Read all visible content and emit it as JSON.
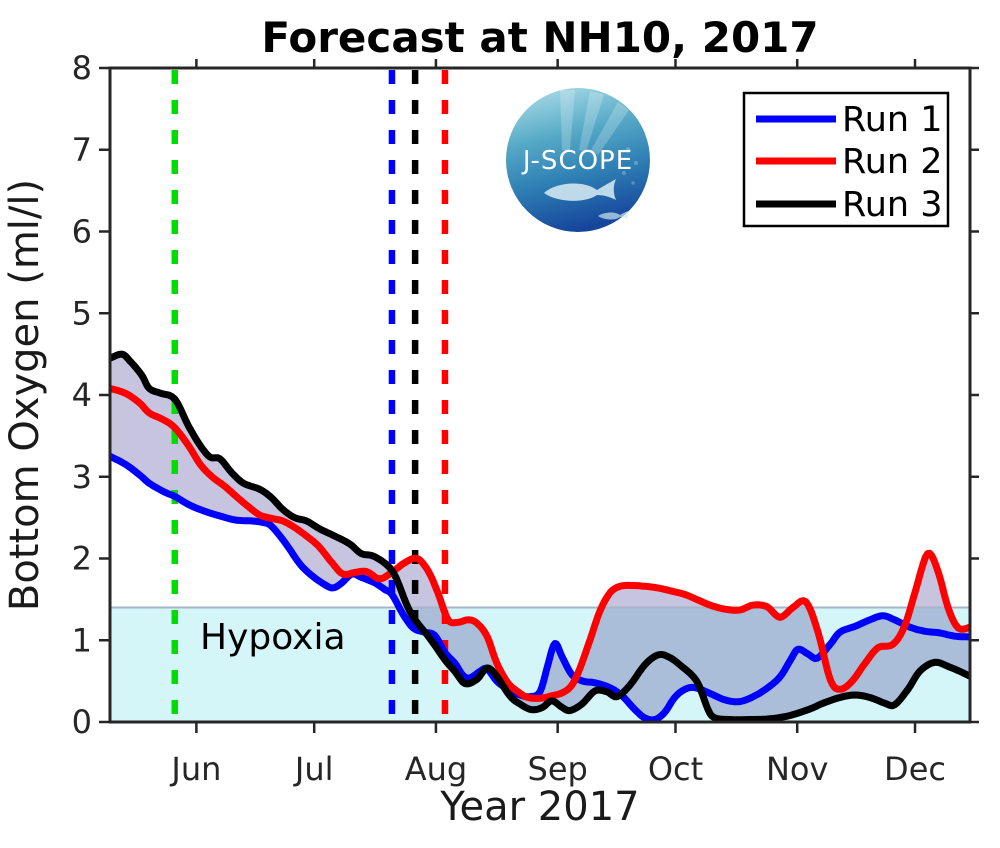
{
  "logo": {
    "text": "J-SCOPE"
  },
  "hypoxia": {
    "label": "Hypoxia",
    "threshold": 1.4,
    "band_color": "#d5f6f8",
    "edge_color": "#a8b4c8"
  },
  "legend": {
    "position": "top-right",
    "entries": [
      "Run 1",
      "Run 2",
      "Run 3"
    ]
  },
  "colors": {
    "axis": "#262626",
    "band_fill": "rgba(92,86,160,0.35)",
    "vline_green": "#00dc00"
  },
  "chart_data": {
    "type": "line",
    "title": "Forecast at NH10, 2017",
    "xlabel": "Year 2017",
    "ylabel": "Bottom Oxygen (ml/l)",
    "x_units": "day of year 2017",
    "x_range": [
      130,
      349
    ],
    "y_range": [
      0,
      8
    ],
    "grid": false,
    "legend_position": "top-right",
    "hypoxia_label": "Hypoxia",
    "hypoxia_threshold": 1.4,
    "y_ticks": [
      0,
      1,
      2,
      3,
      4,
      5,
      6,
      7,
      8
    ],
    "x_ticks": [
      {
        "day": 152,
        "label": "Jun"
      },
      {
        "day": 182,
        "label": "Jul"
      },
      {
        "day": 213,
        "label": "Aug"
      },
      {
        "day": 244,
        "label": "Sep"
      },
      {
        "day": 274,
        "label": "Oct"
      },
      {
        "day": 305,
        "label": "Nov"
      },
      {
        "day": 335,
        "label": "Dec"
      }
    ],
    "vlines": [
      {
        "name": "vline-green-dashed",
        "day": 146.5,
        "color": "#00dc00"
      },
      {
        "name": "vline-blue-dashed",
        "day": 201.8,
        "color": "#0000ff"
      },
      {
        "name": "vline-black-dashed",
        "day": 207.7,
        "color": "#000000"
      },
      {
        "name": "vline-red-dashed",
        "day": 215.3,
        "color": "#ff0000"
      }
    ],
    "band": {
      "between": "pointwise min and max of the three runs",
      "color": "rgba(92,86,160,0.35)"
    },
    "series": [
      {
        "name": "Run 1",
        "color": "#0000ff",
        "points": [
          [
            130,
            3.25
          ],
          [
            134,
            3.15
          ],
          [
            137.6,
            3.02
          ],
          [
            140,
            2.92
          ],
          [
            144,
            2.81
          ],
          [
            146.5,
            2.76
          ],
          [
            150,
            2.66
          ],
          [
            154,
            2.58
          ],
          [
            158,
            2.52
          ],
          [
            162,
            2.47
          ],
          [
            166,
            2.46
          ],
          [
            169,
            2.44
          ],
          [
            171,
            2.4
          ],
          [
            174.5,
            2.2
          ],
          [
            178.4,
            1.93
          ],
          [
            181.7,
            1.78
          ],
          [
            184.7,
            1.68
          ],
          [
            186.8,
            1.64
          ],
          [
            189,
            1.7
          ],
          [
            191.6,
            1.81
          ],
          [
            194,
            1.77
          ],
          [
            197.5,
            1.7
          ],
          [
            200,
            1.62
          ],
          [
            201.8,
            1.56
          ],
          [
            204.6,
            1.32
          ],
          [
            207.2,
            1.15
          ],
          [
            210,
            1.1
          ],
          [
            212.7,
            1.06
          ],
          [
            215.3,
            0.85
          ],
          [
            217.8,
            0.72
          ],
          [
            219.9,
            0.57
          ],
          [
            221.7,
            0.54
          ],
          [
            224.2,
            0.62
          ],
          [
            226,
            0.65
          ],
          [
            228.5,
            0.5
          ],
          [
            231.3,
            0.4
          ],
          [
            234.4,
            0.33
          ],
          [
            236.9,
            0.31
          ],
          [
            239.5,
            0.37
          ],
          [
            241.5,
            0.7
          ],
          [
            243.3,
            0.96
          ],
          [
            245.1,
            0.8
          ],
          [
            247.6,
            0.58
          ],
          [
            250.4,
            0.5
          ],
          [
            253.5,
            0.48
          ],
          [
            257.3,
            0.42
          ],
          [
            260.4,
            0.32
          ],
          [
            263.7,
            0.15
          ],
          [
            266.2,
            0.05
          ],
          [
            268.8,
            0.03
          ],
          [
            271.3,
            0.12
          ],
          [
            273.8,
            0.3
          ],
          [
            276.4,
            0.4
          ],
          [
            279,
            0.42
          ],
          [
            282.8,
            0.35
          ],
          [
            286.6,
            0.27
          ],
          [
            290.4,
            0.25
          ],
          [
            294.2,
            0.32
          ],
          [
            297.5,
            0.42
          ],
          [
            300.6,
            0.55
          ],
          [
            303.2,
            0.75
          ],
          [
            305.2,
            0.89
          ],
          [
            307.8,
            0.83
          ],
          [
            310.1,
            0.78
          ],
          [
            313.4,
            0.95
          ],
          [
            315.9,
            1.1
          ],
          [
            319.7,
            1.17
          ],
          [
            323.5,
            1.25
          ],
          [
            326.8,
            1.3
          ],
          [
            329.8,
            1.25
          ],
          [
            333.7,
            1.16
          ],
          [
            337.5,
            1.11
          ],
          [
            341.3,
            1.09
          ],
          [
            345.1,
            1.05
          ],
          [
            349,
            1.04
          ]
        ]
      },
      {
        "name": "Run 2",
        "color": "#ff0000",
        "points": [
          [
            130,
            4.08
          ],
          [
            134,
            4.02
          ],
          [
            137.6,
            3.9
          ],
          [
            140,
            3.78
          ],
          [
            143.5,
            3.7
          ],
          [
            146.5,
            3.6
          ],
          [
            150,
            3.38
          ],
          [
            153,
            3.15
          ],
          [
            156,
            3.0
          ],
          [
            159.3,
            2.88
          ],
          [
            162.6,
            2.74
          ],
          [
            165.6,
            2.62
          ],
          [
            168.2,
            2.53
          ],
          [
            171.2,
            2.49
          ],
          [
            174,
            2.46
          ],
          [
            177,
            2.38
          ],
          [
            181,
            2.24
          ],
          [
            183.5,
            2.13
          ],
          [
            186.5,
            1.95
          ],
          [
            189.3,
            1.81
          ],
          [
            192.4,
            1.83
          ],
          [
            195.4,
            1.84
          ],
          [
            198.7,
            1.75
          ],
          [
            202,
            1.84
          ],
          [
            205.1,
            1.95
          ],
          [
            208.2,
            2.0
          ],
          [
            211,
            1.85
          ],
          [
            213.5,
            1.58
          ],
          [
            216.1,
            1.25
          ],
          [
            218.6,
            1.22
          ],
          [
            221.2,
            1.25
          ],
          [
            223.4,
            1.21
          ],
          [
            226,
            1.05
          ],
          [
            228.5,
            0.72
          ],
          [
            231.3,
            0.48
          ],
          [
            233.9,
            0.37
          ],
          [
            236.4,
            0.3
          ],
          [
            239.5,
            0.29
          ],
          [
            242.5,
            0.32
          ],
          [
            245.3,
            0.36
          ],
          [
            247.6,
            0.45
          ],
          [
            249.6,
            0.65
          ],
          [
            252.2,
            1.0
          ],
          [
            254.7,
            1.35
          ],
          [
            257.3,
            1.58
          ],
          [
            259.9,
            1.66
          ],
          [
            262.9,
            1.67
          ],
          [
            266.2,
            1.66
          ],
          [
            269.5,
            1.64
          ],
          [
            273.1,
            1.6
          ],
          [
            276.4,
            1.56
          ],
          [
            279.4,
            1.5
          ],
          [
            282.8,
            1.43
          ],
          [
            286.6,
            1.38
          ],
          [
            290.4,
            1.37
          ],
          [
            293.7,
            1.43
          ],
          [
            297.3,
            1.41
          ],
          [
            300.6,
            1.28
          ],
          [
            303.9,
            1.4
          ],
          [
            307.2,
            1.47
          ],
          [
            310.3,
            1.1
          ],
          [
            313.4,
            0.52
          ],
          [
            315.9,
            0.4
          ],
          [
            319,
            0.5
          ],
          [
            322.3,
            0.72
          ],
          [
            325.6,
            0.91
          ],
          [
            329.4,
            0.95
          ],
          [
            332.4,
            1.18
          ],
          [
            335.2,
            1.62
          ],
          [
            338.2,
            2.06
          ],
          [
            340.8,
            1.85
          ],
          [
            343.4,
            1.4
          ],
          [
            346,
            1.15
          ],
          [
            349,
            1.16
          ]
        ]
      },
      {
        "name": "Run 3",
        "color": "#000000",
        "points": [
          [
            130,
            4.45
          ],
          [
            133,
            4.5
          ],
          [
            135,
            4.42
          ],
          [
            138,
            4.25
          ],
          [
            140,
            4.08
          ],
          [
            143,
            4.02
          ],
          [
            146.5,
            3.95
          ],
          [
            150,
            3.62
          ],
          [
            153,
            3.38
          ],
          [
            155.5,
            3.24
          ],
          [
            158,
            3.22
          ],
          [
            161,
            3.05
          ],
          [
            164,
            2.92
          ],
          [
            168,
            2.85
          ],
          [
            171,
            2.75
          ],
          [
            174,
            2.6
          ],
          [
            177,
            2.5
          ],
          [
            180,
            2.46
          ],
          [
            183.5,
            2.36
          ],
          [
            187,
            2.28
          ],
          [
            191,
            2.18
          ],
          [
            194,
            2.06
          ],
          [
            197.5,
            2.02
          ],
          [
            202,
            1.84
          ],
          [
            205.6,
            1.43
          ],
          [
            207.7,
            1.25
          ],
          [
            211.5,
            1.02
          ],
          [
            215.3,
            0.76
          ],
          [
            217.8,
            0.62
          ],
          [
            220.4,
            0.47
          ],
          [
            223.4,
            0.52
          ],
          [
            226,
            0.66
          ],
          [
            228.5,
            0.56
          ],
          [
            231.8,
            0.32
          ],
          [
            234.4,
            0.22
          ],
          [
            237.4,
            0.15
          ],
          [
            240.2,
            0.18
          ],
          [
            242.5,
            0.26
          ],
          [
            245.1,
            0.18
          ],
          [
            247.1,
            0.14
          ],
          [
            250.2,
            0.22
          ],
          [
            253.5,
            0.38
          ],
          [
            256.5,
            0.37
          ],
          [
            259.1,
            0.31
          ],
          [
            262.4,
            0.45
          ],
          [
            266.2,
            0.7
          ],
          [
            269.5,
            0.82
          ],
          [
            272.1,
            0.8
          ],
          [
            275.1,
            0.7
          ],
          [
            279.4,
            0.5
          ],
          [
            282.3,
            0.15
          ],
          [
            284.1,
            0.05
          ],
          [
            287.9,
            0.03
          ],
          [
            293,
            0.03
          ],
          [
            298.1,
            0.04
          ],
          [
            303.2,
            0.08
          ],
          [
            308.3,
            0.16
          ],
          [
            311.6,
            0.23
          ],
          [
            315.9,
            0.3
          ],
          [
            319.7,
            0.33
          ],
          [
            323.5,
            0.3
          ],
          [
            327.3,
            0.23
          ],
          [
            329.8,
            0.21
          ],
          [
            333.2,
            0.4
          ],
          [
            336.2,
            0.62
          ],
          [
            340,
            0.73
          ],
          [
            343.9,
            0.67
          ],
          [
            346.4,
            0.62
          ],
          [
            349,
            0.56
          ]
        ]
      }
    ]
  }
}
